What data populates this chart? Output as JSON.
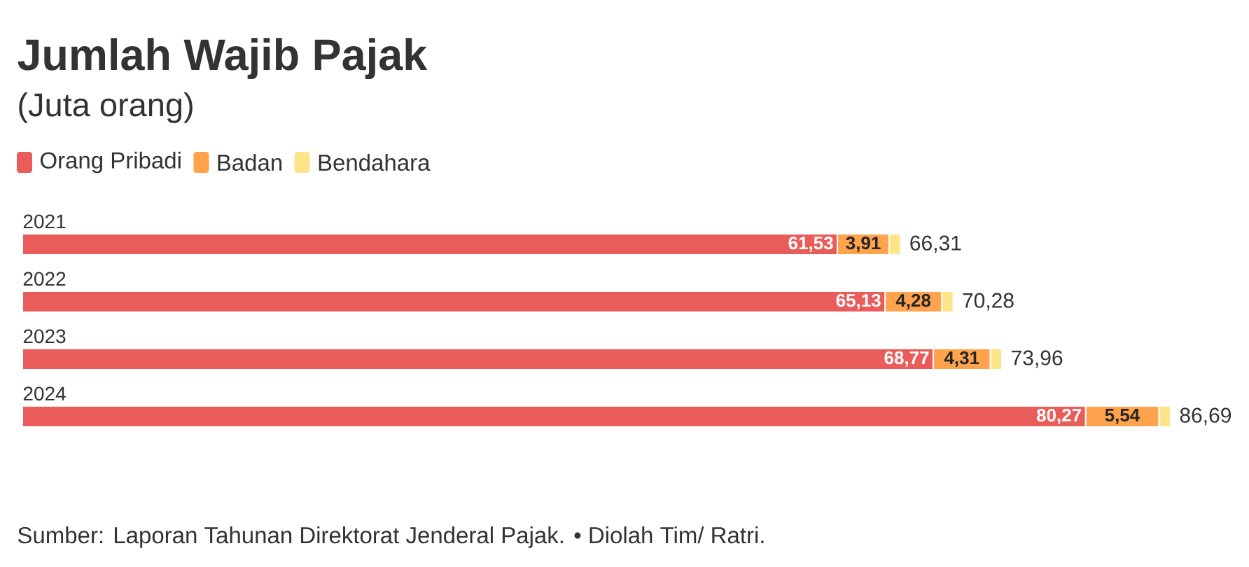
{
  "chart_data": {
    "type": "bar",
    "orientation": "horizontal",
    "stacked": true,
    "title": "Jumlah Wajib Pajak",
    "subtitle": "(Juta orang)",
    "categories": [
      "2021",
      "2022",
      "2023",
      "2024"
    ],
    "series": [
      {
        "name": "Orang Pribadi",
        "color": "#ea5c59",
        "values": [
          61.53,
          65.13,
          68.77,
          80.27
        ],
        "value_labels": [
          "61,53",
          "65,13",
          "68,77",
          "80,27"
        ]
      },
      {
        "name": "Badan",
        "color": "#ffa34d",
        "values": [
          3.91,
          4.28,
          4.31,
          5.54
        ],
        "value_labels": [
          "3,91",
          "4,28",
          "4,31",
          "5,54"
        ]
      },
      {
        "name": "Bendahara",
        "color": "#fde488",
        "values": [
          0.87,
          0.87,
          0.88,
          0.88
        ]
      }
    ],
    "totals": [
      "66,31",
      "70,28",
      "73,96",
      "86,69"
    ],
    "legend": "top left",
    "tick_labels": "y",
    "annotations": [
      "Sumber: Laporan Tahunan Direktorat Jenderal Pajak. • Diolah Tim/ Ratri."
    ]
  }
}
